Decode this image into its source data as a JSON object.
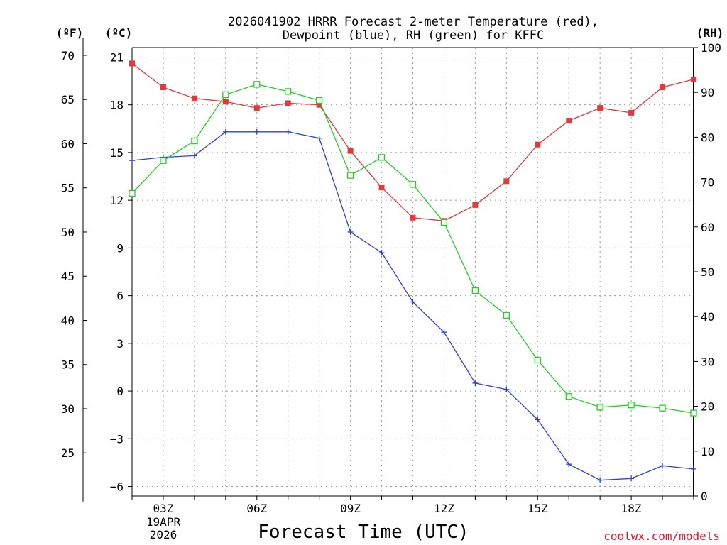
{
  "chart_data": {
    "type": "line",
    "title_line1": "2026041902 HRRR Forecast 2-meter Temperature (red),",
    "title_line2": "Dewpoint (blue), RH (green) for KFFC",
    "xlabel": "Forecast Time (UTC)",
    "credit": "coolwx.com/models",
    "units": {
      "fahrenheit": "(ºF)",
      "celsius": "(ºC)",
      "rh": "(RH)"
    },
    "date_label": [
      "19APR",
      "2026"
    ],
    "x_hours": [
      2,
      3,
      4,
      5,
      6,
      7,
      8,
      9,
      10,
      11,
      12,
      13,
      14,
      15,
      16,
      17,
      18,
      19,
      20
    ],
    "xlim": [
      2,
      20
    ],
    "x_ticks": [
      {
        "hour": 3,
        "label": "03Z"
      },
      {
        "hour": 6,
        "label": "06Z"
      },
      {
        "hour": 9,
        "label": "09Z"
      },
      {
        "hour": 12,
        "label": "12Z"
      },
      {
        "hour": 15,
        "label": "15Z"
      },
      {
        "hour": 18,
        "label": "18Z"
      }
    ],
    "c_lim": [
      -6.6,
      21.6
    ],
    "c_ticks": [
      21,
      18,
      15,
      12,
      9,
      6,
      3,
      0,
      -3,
      -6
    ],
    "c_tick_labels": [
      "21",
      "18",
      "15",
      "12",
      "9",
      "6",
      "3",
      "0",
      "−3",
      "−6"
    ],
    "f_ticks": [
      70,
      65,
      60,
      55,
      50,
      45,
      40,
      35,
      30,
      25
    ],
    "rh_lim": [
      0,
      100
    ],
    "rh_ticks": [
      100,
      90,
      80,
      70,
      60,
      50,
      40,
      30,
      20,
      10,
      0
    ],
    "series": [
      {
        "name": "Temperature",
        "units": "C",
        "color": "#e8373a",
        "marker": "filled-square",
        "values": [
          20.6,
          19.1,
          18.4,
          18.2,
          17.8,
          18.1,
          18.0,
          15.1,
          12.8,
          10.9,
          10.7,
          11.7,
          13.2,
          15.5,
          17.0,
          17.8,
          17.5,
          19.1,
          19.6
        ]
      },
      {
        "name": "Dewpoint",
        "units": "C",
        "color": "#2b3ee8",
        "marker": "plus",
        "values": [
          14.5,
          14.7,
          14.8,
          16.3,
          16.3,
          16.3,
          15.9,
          10.0,
          8.7,
          5.6,
          3.7,
          0.5,
          0.1,
          -1.8,
          -4.6,
          -5.6,
          -5.5,
          -4.7,
          -4.9
        ]
      },
      {
        "name": "RH",
        "units": "%",
        "color": "#1ed41e",
        "marker": "open-square",
        "values": [
          67.5,
          74.8,
          79.2,
          89.5,
          91.8,
          90.2,
          88.2,
          71.5,
          75.5,
          69.5,
          61.0,
          45.8,
          40.3,
          30.3,
          22.2,
          19.8,
          20.3,
          19.6,
          18.5
        ]
      }
    ]
  }
}
